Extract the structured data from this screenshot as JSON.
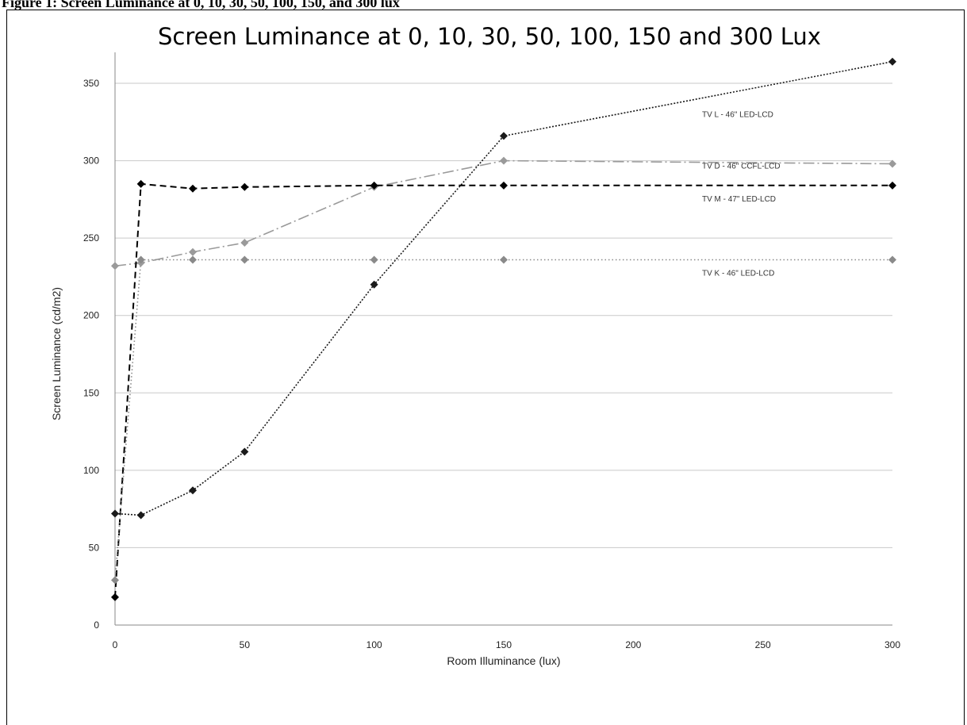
{
  "figure_caption": "Figure 1: Screen Luminance at 0, 10, 30, 50, 100, 150, and 300 lux",
  "chart_data": {
    "type": "line",
    "title": "Screen Luminance at 0, 10, 30, 50, 100, 150 and 300 Lux",
    "xlabel": "Room Illuminance  (lux)",
    "ylabel": "Screen Luminance (cd/m2)",
    "xlim": [
      0,
      300
    ],
    "ylim": [
      0,
      370
    ],
    "x_ticks": [
      0,
      50,
      100,
      150,
      200,
      250,
      300
    ],
    "y_ticks": [
      0,
      50,
      100,
      150,
      200,
      250,
      300,
      350
    ],
    "grid": "horizontal",
    "series": [
      {
        "name": "TV L - 46\" LED-LCD",
        "color": "#1a1a1a",
        "dash": "dense-dotted",
        "marker": "diamond",
        "x": [
          0,
          10,
          30,
          50,
          100,
          150,
          300
        ],
        "y": [
          72,
          71,
          87,
          112,
          220,
          316,
          364
        ]
      },
      {
        "name": "TV D - 46\" CCFL-LCD",
        "color": "#9a9a9a",
        "dash": "dash-dot",
        "marker": "diamond",
        "x": [
          0,
          10,
          30,
          50,
          100,
          150,
          300
        ],
        "y": [
          232,
          234,
          241,
          247,
          283,
          300,
          298
        ]
      },
      {
        "name": "TV M - 47\" LED-LCD",
        "color": "#000000",
        "dash": "dashed",
        "marker": "diamond",
        "x": [
          0,
          10,
          30,
          50,
          100,
          150,
          300
        ],
        "y": [
          18,
          285,
          282,
          283,
          284,
          284,
          284
        ]
      },
      {
        "name": "TV K - 46\" LED-LCD",
        "color": "#8a8a8a",
        "dash": "dotted",
        "marker": "diamond",
        "x": [
          0,
          10,
          30,
          50,
          100,
          150,
          300
        ],
        "y": [
          29,
          236,
          236,
          236,
          236,
          236,
          236
        ]
      }
    ],
    "series_label_positions": [
      "right-near-line",
      "right-near-line",
      "right-near-line",
      "right-near-line"
    ]
  }
}
